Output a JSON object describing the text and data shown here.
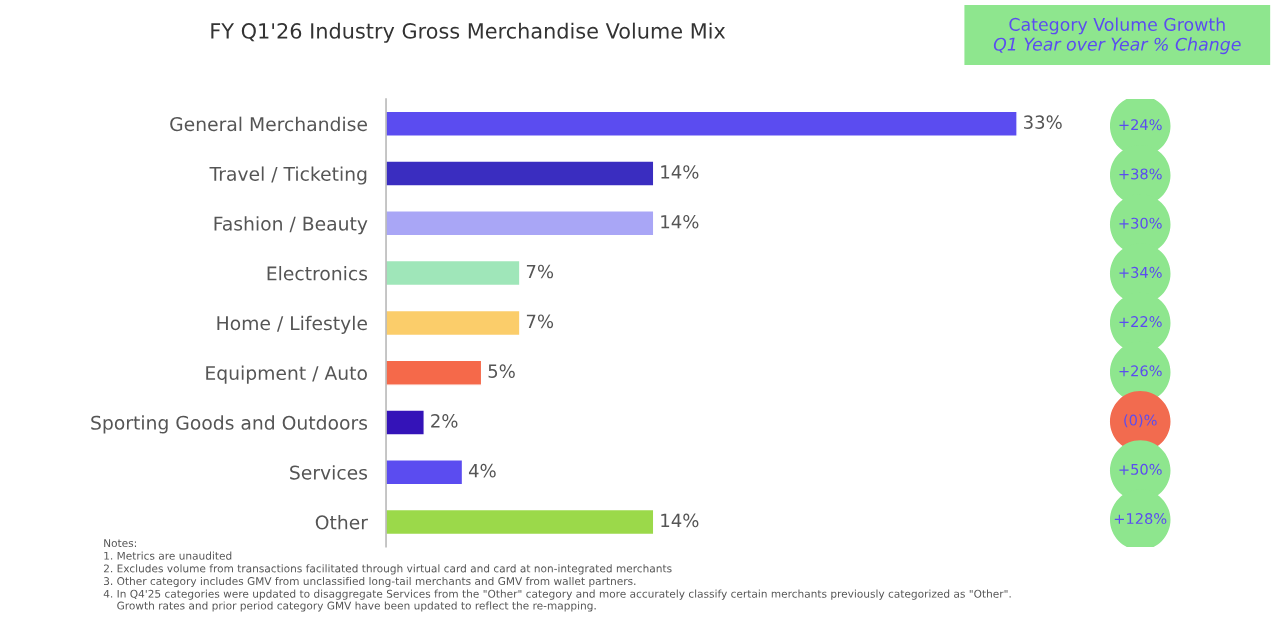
{
  "chart_data": [
    {
      "type": "bar",
      "orientation": "horizontal",
      "title": "FY Q1'26 Industry Gross Merchandise Volume Mix",
      "categories": [
        "General Merchandise",
        "Travel / Ticketing",
        "Fashion / Beauty",
        "Electronics",
        "Home / Lifestyle",
        "Equipment / Auto",
        "Sporting Goods and Outdoors",
        "Services",
        "Other"
      ],
      "values": [
        33,
        14,
        14,
        7,
        7,
        5,
        2,
        4,
        14
      ],
      "value_labels": [
        "33%",
        "14%",
        "14%",
        "7%",
        "7%",
        "5%",
        "2%",
        "4%",
        "14%"
      ],
      "colors": [
        "#5b4cf0",
        "#3a2dc0",
        "#a9a6f6",
        "#9fe6b9",
        "#fbcd6a",
        "#f5694a",
        "#3413b8",
        "#5b4cf0",
        "#9bd94a"
      ],
      "annotations": [
        "Notes:",
        "1. Metrics are unaudited",
        "2. Excludes volume from transactions facilitated through virtual card and card at non-integrated merchants",
        "3. Other category includes GMV from unclassified long-tail merchants and GMV from wallet partners.",
        "4. In Q4'25 categories were updated to disaggregate Services from the \"Other\" category and more accurately classify certain merchants previously categorized as \"Other\".\n    Growth rates and prior period category GMV have been updated to reflect the re-mapping."
      ],
      "grid": false,
      "legend": false
    },
    {
      "type": "other",
      "title": "Category Volume Growth",
      "subtitle": "Q1 Year over Year % Change",
      "categories": [
        null,
        null,
        null,
        null,
        null,
        null,
        null,
        null,
        null
      ],
      "values": [
        24,
        38,
        30,
        34,
        22,
        26,
        0,
        50,
        128
      ],
      "value_labels": [
        "+24%",
        "+38%",
        "+30%",
        "+34%",
        "+22%",
        "+26%",
        "(0)%",
        "+50%",
        "+128%"
      ],
      "colors": [
        "#8ee68e",
        "#8ee68e",
        "#8ee68e",
        "#8ee68e",
        "#8ee68e",
        "#8ee68e",
        "#f26b4f",
        "#8ee68e",
        "#8ee68e"
      ]
    }
  ]
}
